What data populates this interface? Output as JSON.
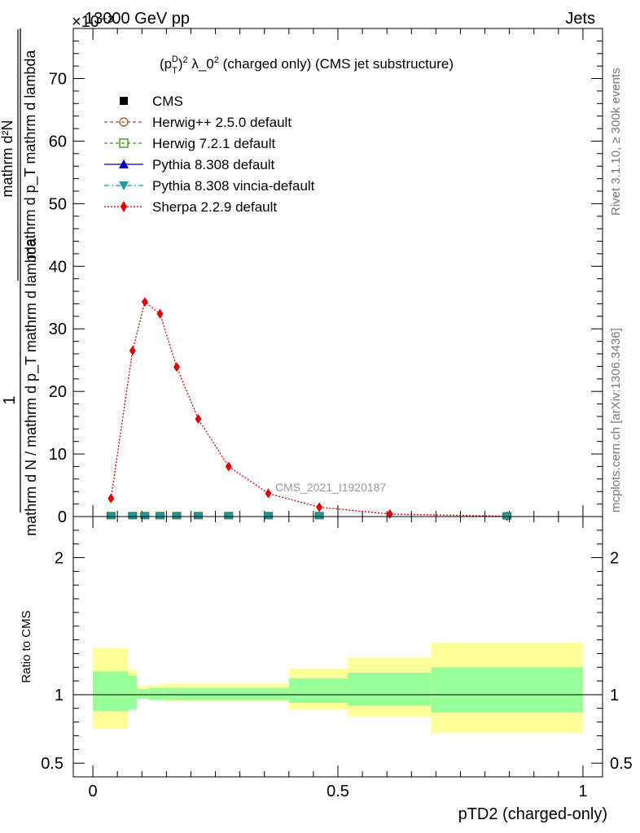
{
  "header": {
    "left": "13000 GeV pp",
    "right": "Jets",
    "scale_note": "×10⁻³"
  },
  "side_text": {
    "rivet": "Rivet 3.1.10, ≥ 300k events",
    "mcplots": "mcplots.cern.ch [arXiv:1306.3436]"
  },
  "chart_data": [
    {
      "type": "line",
      "title": "(p_T^D)^2 λ_0^2 (charged only) (CMS jet substructure)",
      "title_parts": {
        "pre": "(p",
        "sup_d": "D",
        "sub_t": "T",
        "mid": ")",
        "sup2": "2",
        "lambda": " λ_0",
        "sup2b": "2",
        "post": " (charged only) (CMS jet substructure)"
      },
      "ylabel": {
        "outer_numerator": "1",
        "outer_denominator": "mathrm d N / mathrm d p_T mathrm d lambda",
        "inner_numerator": "mathrm d²N",
        "inner_denominator": "mathrm d p_T mathrm d lambda"
      },
      "ylim": [
        0,
        78
      ],
      "y_unit": "×10^-3",
      "yticks": [
        0,
        10,
        20,
        30,
        40,
        50,
        60,
        70
      ],
      "xlim": [
        -0.04,
        1.04
      ],
      "watermark": "CMS_2021_I1920187",
      "legend": [
        {
          "name": "CMS",
          "style": "data"
        },
        {
          "name": "Herwig++ 2.5.0 default",
          "color": "#a0522d"
        },
        {
          "name": "Herwig 7.2.1 default",
          "color": "#3a9a1a"
        },
        {
          "name": "Pythia 8.308 default",
          "color": "#0000cc"
        },
        {
          "name": "Pythia 8.308 vincia-default",
          "color": "#1a9aaa"
        },
        {
          "name": "Sherpa 2.2.9 default",
          "color": "#e00000"
        }
      ],
      "series": [
        {
          "name": "Sherpa 2.2.9 default",
          "color": "#e00000",
          "x": [
            0.037,
            0.081,
            0.106,
            0.137,
            0.171,
            0.215,
            0.277,
            0.358,
            0.462,
            0.606,
            0.845
          ],
          "values": [
            2.9,
            26.5,
            34.3,
            32.4,
            23.9,
            15.6,
            8.0,
            3.7,
            1.5,
            0.4,
            0.05
          ]
        },
        {
          "name": "CMS",
          "color": "#000000",
          "x": [
            0.037,
            0.081,
            0.106,
            0.137,
            0.171,
            0.215,
            0.277,
            0.358,
            0.462,
            0.845
          ],
          "values": [
            0.15,
            0.15,
            0.15,
            0.15,
            0.15,
            0.15,
            0.15,
            0.15,
            0.15,
            0.1
          ]
        }
      ]
    },
    {
      "type": "area",
      "ylabel": "Ratio to CMS",
      "xlabel": "pTD2 (charged-only)",
      "ylim": [
        0.4,
        2.3
      ],
      "yticks": [
        0.5,
        1,
        2
      ],
      "ytick_labels": [
        "0.5",
        "1",
        "2"
      ],
      "xticks": [
        0,
        0.5,
        1
      ],
      "xtick_labels": [
        "0",
        "0.5",
        "1"
      ],
      "reference_line": 1,
      "bands": {
        "edges": [
          0.0,
          0.072,
          0.09,
          0.115,
          0.145,
          0.16,
          0.4,
          0.52,
          0.69,
          1.0
        ],
        "green_low": [
          0.88,
          0.89,
          0.97,
          0.96,
          0.96,
          0.96,
          0.94,
          0.92,
          0.87
        ],
        "green_high": [
          1.17,
          1.14,
          1.04,
          1.05,
          1.05,
          1.05,
          1.12,
          1.16,
          1.2
        ],
        "yellow_low": [
          0.75,
          0.89,
          0.97,
          0.96,
          0.95,
          0.95,
          0.89,
          0.84,
          0.72
        ],
        "yellow_high": [
          1.34,
          1.18,
          1.06,
          1.07,
          1.08,
          1.08,
          1.19,
          1.27,
          1.38
        ]
      }
    }
  ]
}
